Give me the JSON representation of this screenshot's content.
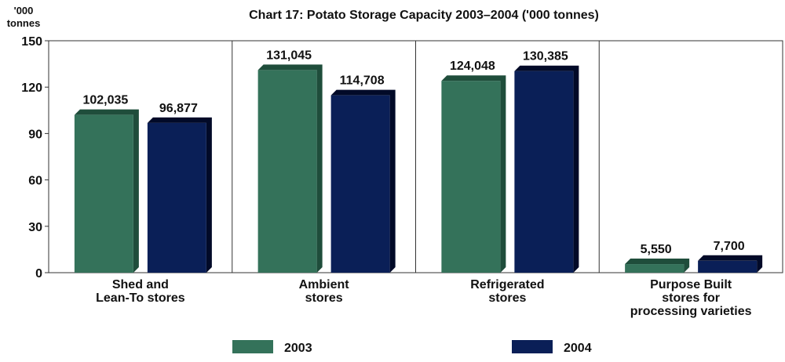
{
  "chart_data": {
    "type": "bar",
    "title": "Chart 17: Potato Storage Capacity 2003–2004 ('000 tonnes)",
    "ylabel_lines": [
      "'000",
      "tonnes"
    ],
    "xlabel": "",
    "ylim": [
      0,
      150
    ],
    "yticks": [
      0,
      30,
      60,
      90,
      120,
      150
    ],
    "categories": [
      [
        "Shed and",
        "Lean-To stores"
      ],
      [
        "Ambient",
        "stores"
      ],
      [
        "Refrigerated",
        "stores"
      ],
      [
        "Purpose Built",
        "stores for",
        "processing varieties"
      ]
    ],
    "series": [
      {
        "name": "2003",
        "color": "#34725a",
        "shadow": "#1f4d3b",
        "values": [
          102.035,
          131.045,
          124.048,
          5.55
        ],
        "labels": [
          "102,035",
          "131,045",
          "124,048",
          "5,550"
        ]
      },
      {
        "name": "2004",
        "color": "#0a1f57",
        "shadow": "#020a28",
        "values": [
          96.877,
          114.708,
          130.385,
          7.7
        ],
        "labels": [
          "96,877",
          "114,708",
          "130,385",
          "7,700"
        ]
      }
    ],
    "grid": "vertical-category-separators",
    "legend_position": "bottom"
  }
}
